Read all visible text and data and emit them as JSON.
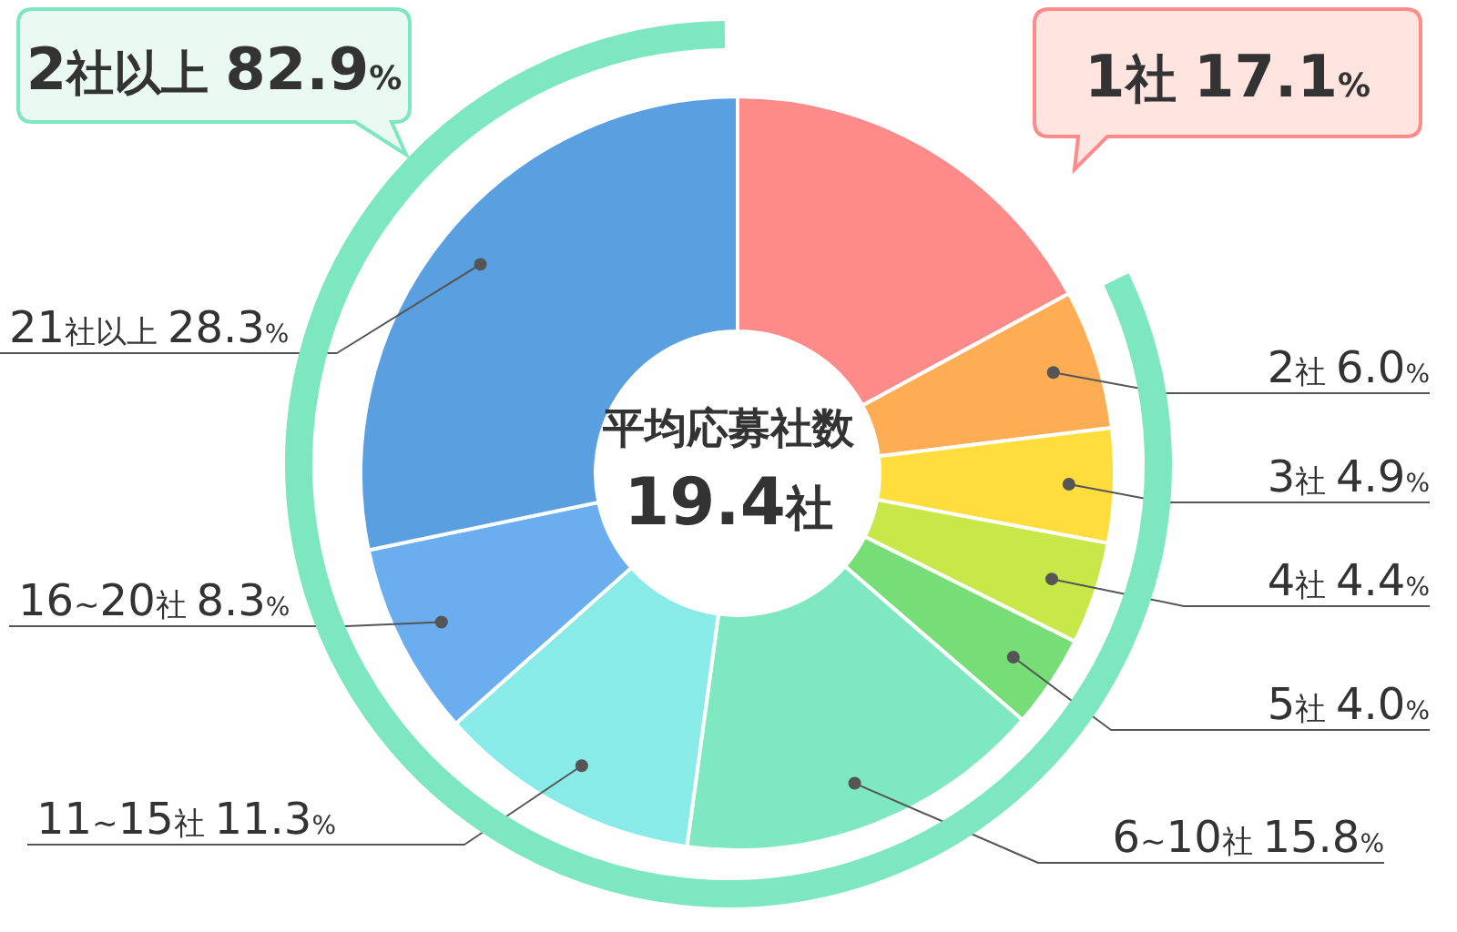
{
  "chart_data": {
    "type": "donut",
    "categories": [
      "1社",
      "2社",
      "3社",
      "4社",
      "5社",
      "6~10社",
      "11~15社",
      "16~20社",
      "21社以上"
    ],
    "values": [
      17.1,
      6.0,
      4.9,
      4.4,
      4.0,
      15.8,
      11.3,
      8.3,
      28.3
    ],
    "value_labels": [
      "17.1%",
      "6.0%",
      "4.9%",
      "4.4%",
      "4.0%",
      "15.8%",
      "11.3%",
      "8.3%",
      "28.3%"
    ],
    "colors": [
      "#ff8a8a",
      "#ffad55",
      "#ffdd3d",
      "#c8e84a",
      "#77dd77",
      "#7ee8c0",
      "#88ebe8",
      "#6aaef0",
      "#5aa0e0"
    ],
    "annotations": [
      "2社以上 82.9%",
      "平均応募社数",
      "19.4社"
    ]
  }
}
